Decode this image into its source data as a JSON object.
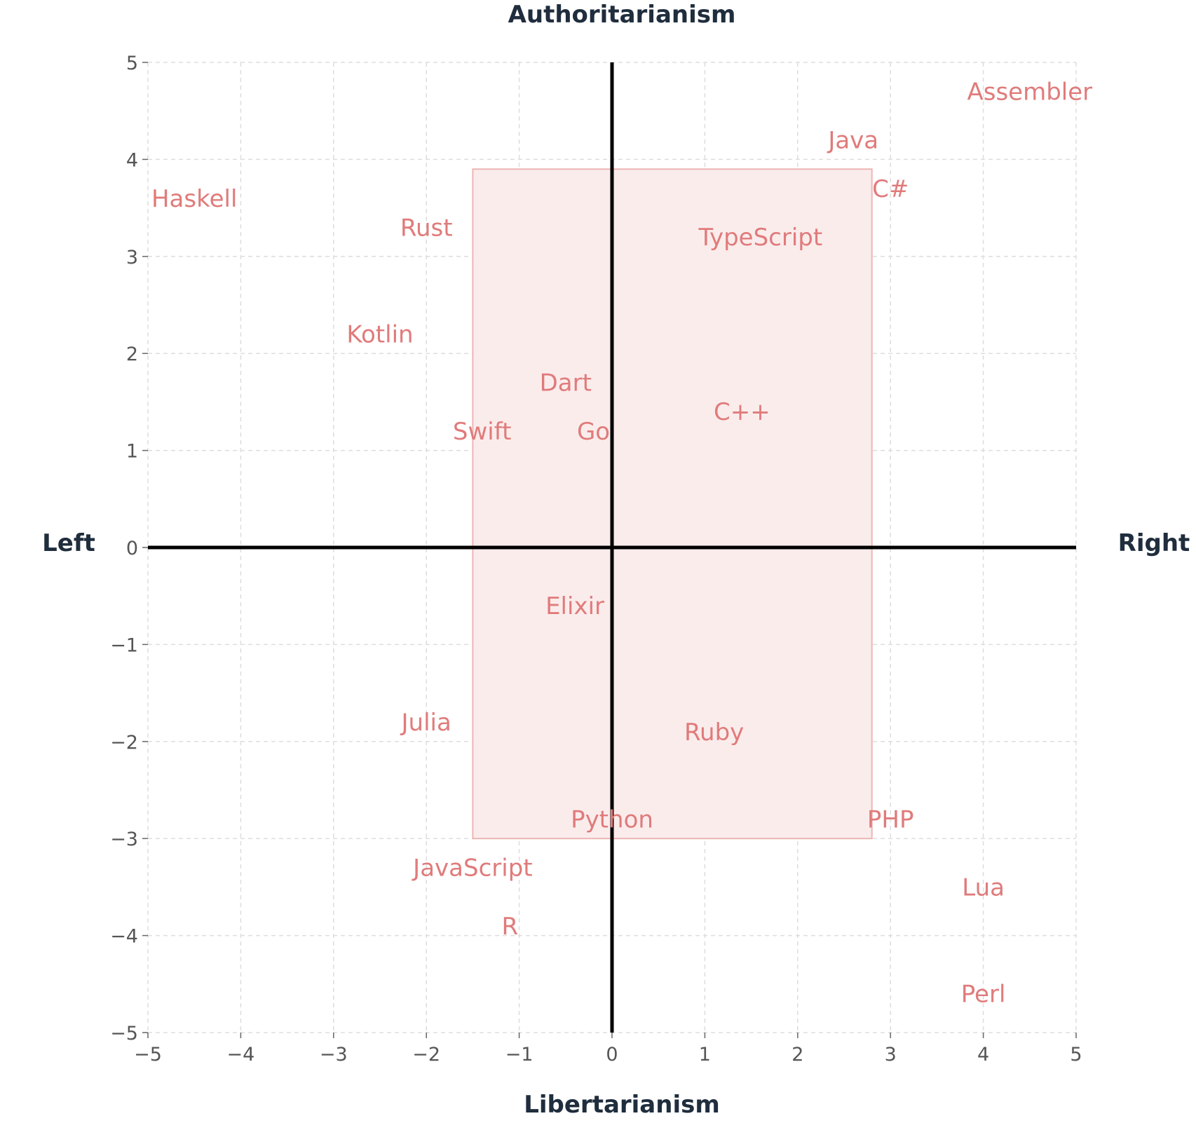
{
  "chart_data": {
    "type": "scatter",
    "x_range": [
      -5,
      5
    ],
    "y_range": [
      -5,
      5
    ],
    "x_ticks": [
      -5,
      -4,
      -3,
      -2,
      -1,
      0,
      1,
      2,
      3,
      4,
      5
    ],
    "y_ticks": [
      -5,
      -4,
      -3,
      -2,
      -1,
      0,
      1,
      2,
      3,
      4,
      5
    ],
    "grid": true,
    "labels": {
      "top": "Authoritarianism",
      "bottom": "Libertarianism",
      "left": "Left",
      "right": "Right"
    },
    "highlight_region": {
      "x": [
        -1.5,
        2.8
      ],
      "y": [
        -3.0,
        3.9
      ]
    },
    "points": [
      {
        "label": "Assembler",
        "x": 4.5,
        "y": 4.7
      },
      {
        "label": "Java",
        "x": 2.6,
        "y": 4.2
      },
      {
        "label": "C#",
        "x": 3.0,
        "y": 3.7
      },
      {
        "label": "Haskell",
        "x": -4.5,
        "y": 3.6
      },
      {
        "label": "Rust",
        "x": -2.0,
        "y": 3.3
      },
      {
        "label": "TypeScript",
        "x": 1.6,
        "y": 3.2
      },
      {
        "label": "Kotlin",
        "x": -2.5,
        "y": 2.2
      },
      {
        "label": "Dart",
        "x": -0.5,
        "y": 1.7
      },
      {
        "label": "C++",
        "x": 1.4,
        "y": 1.4
      },
      {
        "label": "Swift",
        "x": -1.4,
        "y": 1.2
      },
      {
        "label": "Go",
        "x": -0.2,
        "y": 1.2
      },
      {
        "label": "Elixir",
        "x": -0.4,
        "y": -0.6
      },
      {
        "label": "Julia",
        "x": -2.0,
        "y": -1.8
      },
      {
        "label": "Ruby",
        "x": 1.1,
        "y": -1.9
      },
      {
        "label": "Python",
        "x": 0.0,
        "y": -2.8
      },
      {
        "label": "PHP",
        "x": 3.0,
        "y": -2.8
      },
      {
        "label": "JavaScript",
        "x": -1.5,
        "y": -3.3
      },
      {
        "label": "Lua",
        "x": 4.0,
        "y": -3.5
      },
      {
        "label": "R",
        "x": -1.1,
        "y": -3.9
      },
      {
        "label": "Perl",
        "x": 4.0,
        "y": -4.6
      }
    ]
  },
  "colors": {
    "point_label": "#e07b7b",
    "region_fill": "#fbecec",
    "region_stroke": "#eeb5b5"
  }
}
